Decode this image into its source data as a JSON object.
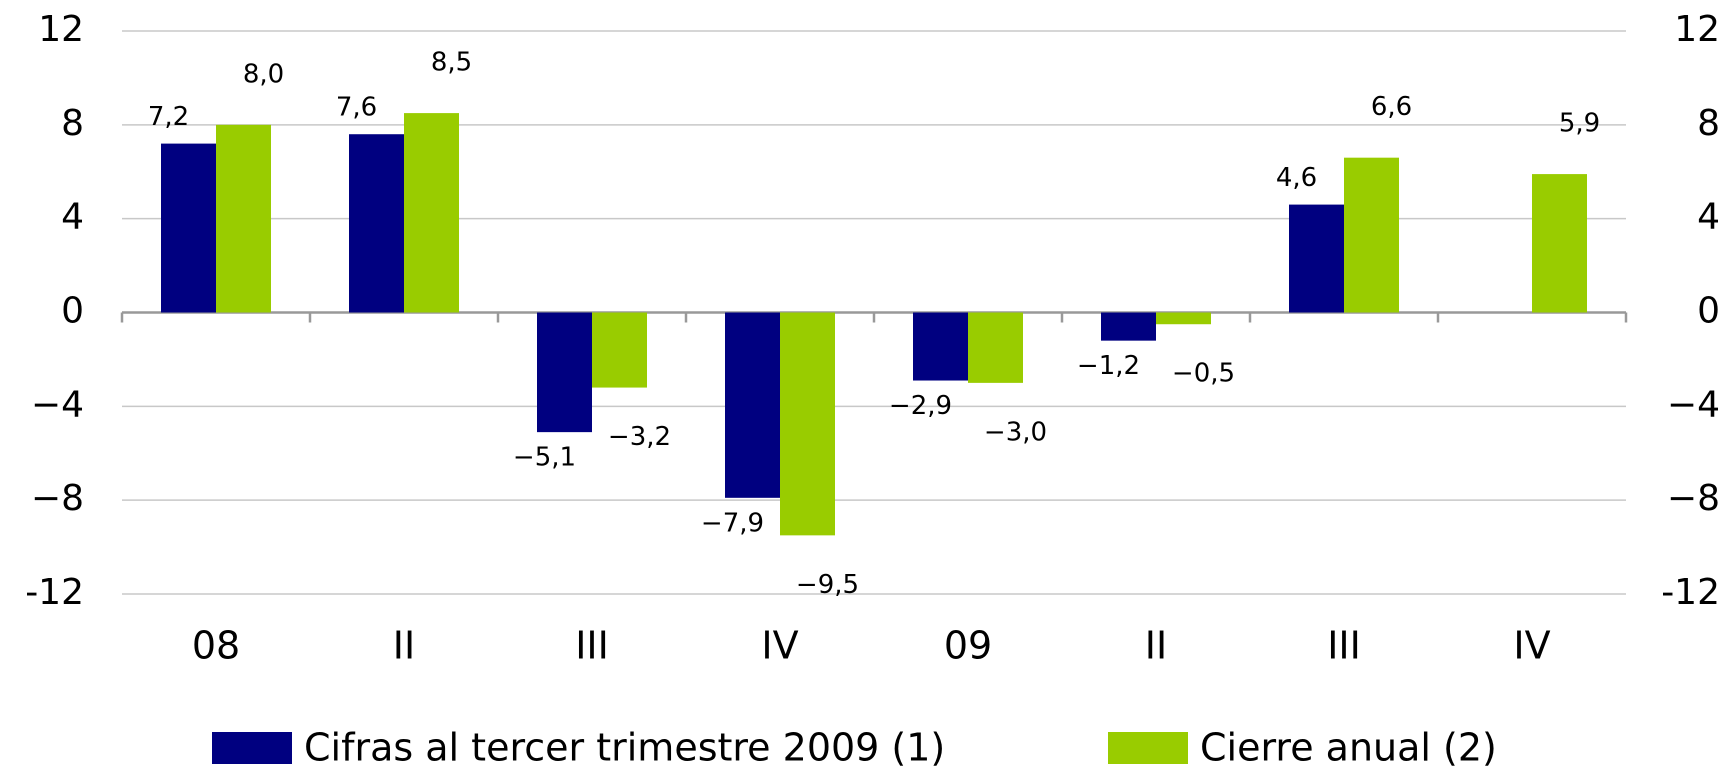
{
  "chart_data": {
    "type": "bar",
    "categories": [
      "08",
      "II",
      "III",
      "IV",
      "09",
      "II",
      "III",
      "IV"
    ],
    "series": [
      {
        "name": "Cifras al tercer trimestre 2009 (1)",
        "color": "#000080",
        "values": [
          7.2,
          7.6,
          -5.1,
          -7.9,
          -2.9,
          -1.2,
          4.6,
          null
        ],
        "value_labels": [
          "7,2",
          "7,6",
          "−5,1",
          "−7,9",
          "−2,9",
          "−1,2",
          "4,6",
          null
        ]
      },
      {
        "name": "Cierre anual (2)",
        "color": "#99cc00",
        "values": [
          8.0,
          8.5,
          -3.2,
          -9.5,
          -3.0,
          -0.5,
          6.6,
          5.9
        ],
        "value_labels": [
          "8,0",
          "8,5",
          "−3,2",
          "−9,5",
          "−3,0",
          "−0,5",
          "6,6",
          "5,9"
        ]
      }
    ],
    "ylim": [
      -12,
      12
    ],
    "yticks": [
      12,
      8,
      4,
      0,
      {
        "value": -4,
        "label": "−4"
      },
      {
        "value": -8,
        "label": "−8"
      },
      -12
    ],
    "grid": true
  }
}
